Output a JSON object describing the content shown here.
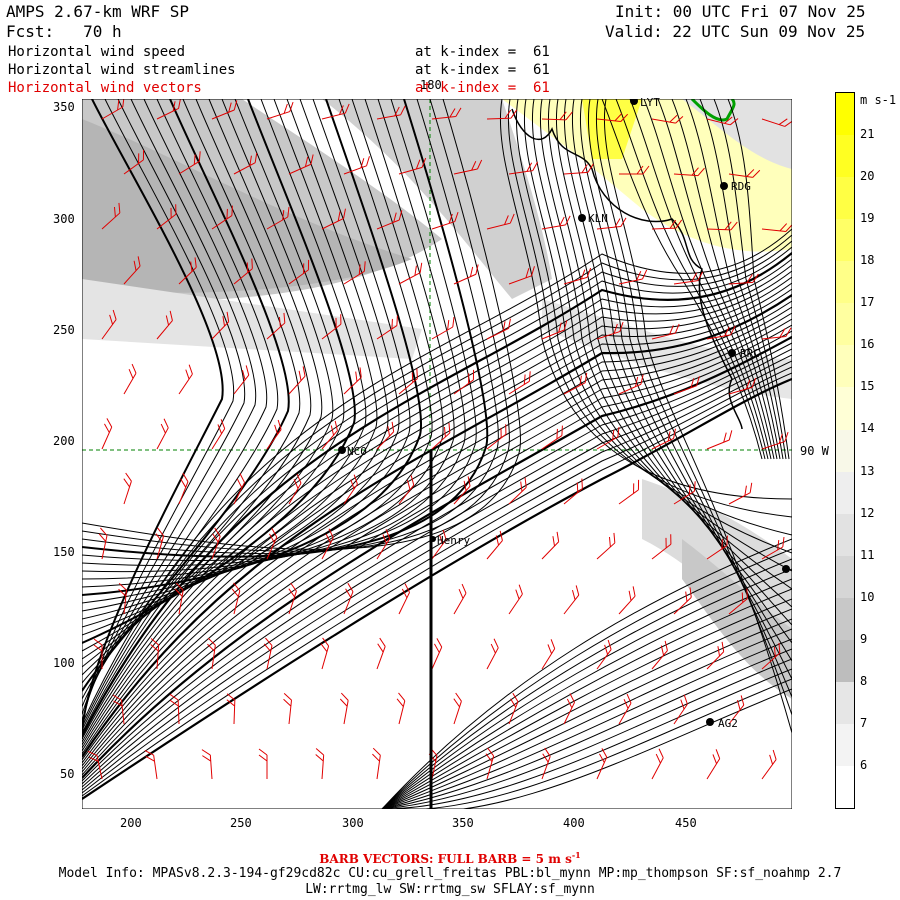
{
  "header": {
    "model_line": "AMPS 2.67-km WRF SP",
    "fcst_line": "Fcst:   70 h",
    "init_line": "Init: 00 UTC Fri 07 Nov 25",
    "valid_line": "Valid: 22 UTC Sun 09 Nov 25",
    "fields": [
      {
        "name": "Horizontal wind speed",
        "level": "at k-index =  61",
        "color": "#000000"
      },
      {
        "name": "Horizontal wind streamlines",
        "level": "at k-index =  61",
        "color": "#000000"
      },
      {
        "name": "Horizontal wind vectors",
        "level": "at k-index =  61",
        "color": "#e00000"
      }
    ]
  },
  "map": {
    "x_ticks": [
      "200",
      "250",
      "300",
      "350",
      "400",
      "450"
    ],
    "y_ticks": [
      "350",
      "300",
      "250",
      "200",
      "150",
      "100",
      "50"
    ],
    "grid_labels": {
      "meridian": "180",
      "parallel": "90 W"
    },
    "stations": [
      {
        "label": "NCO"
      },
      {
        "label": "Henry"
      },
      {
        "label": "KLN"
      },
      {
        "label": "RDG"
      },
      {
        "label": "RRC"
      },
      {
        "label": "AG2"
      },
      {
        "label": "LYT"
      }
    ],
    "colors": {
      "streamlines": "#000000",
      "barbs": "#e00000",
      "grid": "#008000",
      "coast": "#000000",
      "green_contour": "#00a000"
    }
  },
  "colorbar": {
    "units": "m s-1",
    "labels": [
      "21",
      "20",
      "19",
      "18",
      "17",
      "16",
      "15",
      "14",
      "13",
      "12",
      "11",
      "10",
      "9",
      "8",
      "7",
      "6"
    ],
    "colors": [
      "#ffff00",
      "#ffff22",
      "#ffff44",
      "#ffff66",
      "#ffff88",
      "#ffffa0",
      "#ffffbb",
      "#ffffd6",
      "#f8f8e8",
      "#eeeeee",
      "#e2e2e2",
      "#d6d6d6",
      "#c8c8c8",
      "#bdbdbd",
      "#e6e6e6",
      "#f3f3f3"
    ]
  },
  "footer": {
    "barb_note": "BARB VECTORS:  FULL BARB = 5 m s",
    "barb_sup": "-1",
    "model_info": "Model Info: MPASv8.2.3-194-gf29cd82c CU:cu_grell_freitas PBL:bl_mynn MP:mp_thompson SF:sf_noahmp 2.7",
    "physics": "LW:rrtmg_lw SW:rrtmg_sw SFLAY:sf_mynn"
  }
}
